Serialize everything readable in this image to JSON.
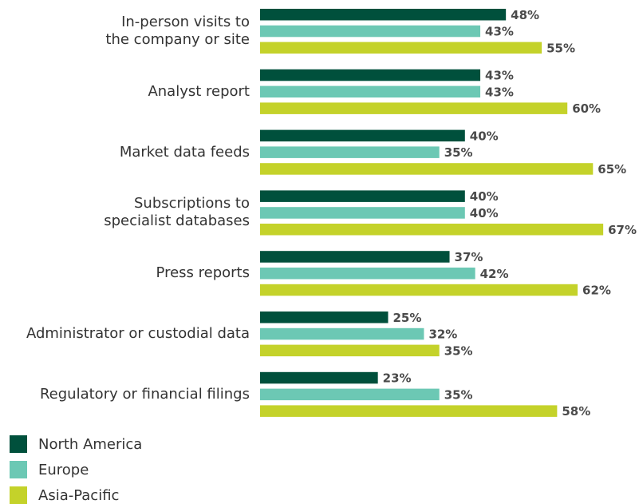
{
  "chart_data": {
    "type": "bar",
    "orientation": "horizontal",
    "categories": [
      "In-person visits to\nthe company or site",
      "Analyst report",
      "Market data feeds",
      "Subscriptions to\nspecialist databases",
      "Press reports",
      "Administrator or custodial data",
      "Regulatory or financial filings"
    ],
    "series": [
      {
        "name": "North America",
        "color": "#00503c",
        "values": [
          48,
          43,
          40,
          40,
          37,
          25,
          23
        ],
        "value_labels": [
          "48%",
          "43%",
          "40%",
          "40%",
          "37%",
          "25%",
          "23%"
        ]
      },
      {
        "name": "Europe",
        "color": "#6cc8b4",
        "values": [
          43,
          43,
          35,
          40,
          42,
          32,
          35
        ],
        "value_labels": [
          "43%",
          "43%",
          "35%",
          "40%",
          "42%",
          "32%",
          "35%"
        ]
      },
      {
        "name": "Asia-Pacific",
        "color": "#c4d22a",
        "values": [
          55,
          60,
          65,
          67,
          62,
          35,
          58
        ],
        "value_labels": [
          "55%",
          "60%",
          "65%",
          "67%",
          "62%",
          "35%",
          "58%"
        ]
      }
    ],
    "legend": "bottom-left"
  }
}
